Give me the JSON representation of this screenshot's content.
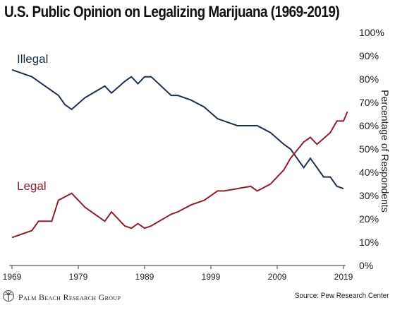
{
  "chart_data": {
    "type": "line",
    "title": "U.S. Public Opinion on Legalizing Marijuana (1969-2019)",
    "ylabel": "Percentage of Respondents",
    "xlabel": "",
    "xlim": [
      1969,
      2019
    ],
    "ylim": [
      0,
      100
    ],
    "x_ticks": [
      "1969",
      "1979",
      "1989",
      "1999",
      "2009",
      "2019"
    ],
    "x_tick_values": [
      1969,
      1979,
      1989,
      1999,
      2009,
      2019
    ],
    "y_ticks": [
      0,
      10,
      20,
      30,
      40,
      50,
      60,
      70,
      80,
      90,
      100
    ],
    "y_tick_labels": [
      "0%",
      "10%",
      "20%",
      "30%",
      "40%",
      "50%",
      "60%",
      "70%",
      "80%",
      "90%",
      "100%"
    ],
    "grid": false,
    "series": [
      {
        "name": "Illegal",
        "color": "#1c3049",
        "points": [
          [
            1969,
            84
          ],
          [
            1972,
            81
          ],
          [
            1973,
            79
          ],
          [
            1976,
            73
          ],
          [
            1977,
            69
          ],
          [
            1978,
            67
          ],
          [
            1980,
            72
          ],
          [
            1983,
            77
          ],
          [
            1984,
            74
          ],
          [
            1986,
            79
          ],
          [
            1987,
            81
          ],
          [
            1988,
            78
          ],
          [
            1989,
            81
          ],
          [
            1990,
            81
          ],
          [
            1993,
            73
          ],
          [
            1994,
            73
          ],
          [
            1996,
            71
          ],
          [
            1998,
            68
          ],
          [
            2000,
            63
          ],
          [
            2001,
            62
          ],
          [
            2003,
            60
          ],
          [
            2006,
            60
          ],
          [
            2008,
            57
          ],
          [
            2010,
            52
          ],
          [
            2011,
            50
          ],
          [
            2013,
            42
          ],
          [
            2014,
            46
          ],
          [
            2016,
            38
          ],
          [
            2017,
            38
          ],
          [
            2018,
            34
          ],
          [
            2019,
            33
          ]
        ]
      },
      {
        "name": "Legal",
        "color": "#8f1f2c",
        "points": [
          [
            1969,
            12
          ],
          [
            1972,
            15
          ],
          [
            1973,
            19
          ],
          [
            1974,
            19
          ],
          [
            1975,
            19
          ],
          [
            1976,
            28
          ],
          [
            1978,
            31
          ],
          [
            1980,
            25
          ],
          [
            1983,
            19
          ],
          [
            1984,
            23
          ],
          [
            1986,
            17
          ],
          [
            1987,
            16
          ],
          [
            1988,
            18
          ],
          [
            1989,
            16
          ],
          [
            1990,
            17
          ],
          [
            1993,
            22
          ],
          [
            1994,
            23
          ],
          [
            1996,
            26
          ],
          [
            1998,
            28
          ],
          [
            2000,
            32
          ],
          [
            2001,
            32
          ],
          [
            2003,
            33
          ],
          [
            2005,
            34
          ],
          [
            2006,
            32
          ],
          [
            2008,
            35
          ],
          [
            2010,
            41
          ],
          [
            2011,
            46
          ],
          [
            2013,
            53
          ],
          [
            2014,
            55
          ],
          [
            2015,
            52
          ],
          [
            2017,
            57
          ],
          [
            2018,
            62
          ],
          [
            2019,
            62
          ],
          [
            2019.6,
            66
          ]
        ]
      }
    ]
  },
  "footer": {
    "logo_text": "Palm Beach Research Group",
    "logo_icon": "palm-tree-icon",
    "source": "Source: Pew Research Center"
  }
}
